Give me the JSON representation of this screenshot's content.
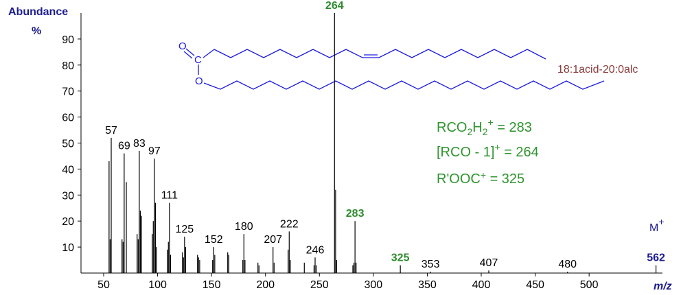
{
  "chart_data": {
    "type": "bar",
    "y_label": "Abundance",
    "y_unit": "%",
    "x_label": "m/z",
    "molecular_ion": [
      "M",
      "+"
    ],
    "compound": "18:1acid-20:0alc",
    "structure": {
      "atoms": [
        "O",
        "C",
        "O"
      ]
    },
    "formulas": [
      [
        "RCO",
        "2",
        "H",
        "2",
        "+",
        " = 283"
      ],
      [
        "[RCO - 1]",
        "+",
        " = 264"
      ],
      [
        "R'OOC",
        "+",
        " = 325"
      ]
    ],
    "x": [
      55,
      56,
      57,
      67,
      68,
      69,
      71,
      81,
      82,
      83,
      84,
      85,
      95,
      96,
      97,
      98,
      99,
      109,
      110,
      111,
      112,
      123,
      124,
      125,
      126,
      137,
      138,
      139,
      151,
      152,
      153,
      165,
      166,
      179,
      180,
      181,
      193,
      194,
      207,
      208,
      221,
      222,
      223,
      236,
      245,
      246,
      247,
      264,
      265,
      266,
      281,
      282,
      283,
      284,
      325,
      353,
      407,
      480,
      562
    ],
    "values": [
      43,
      13,
      52,
      13,
      12,
      46,
      35,
      15,
      13,
      47,
      24,
      22,
      15,
      20,
      44,
      27,
      10,
      9,
      12,
      27,
      7,
      8,
      6,
      14,
      10,
      7,
      6,
      5,
      5,
      10,
      7,
      8,
      7,
      5,
      15,
      5,
      4,
      3,
      10,
      4,
      9,
      16,
      5,
      4,
      3,
      6,
      3,
      100,
      32,
      5,
      3,
      4,
      20,
      4,
      3,
      0.5,
      1,
      0.5,
      3
    ],
    "label_colors": [
      null,
      null,
      "#000000",
      null,
      null,
      "#000000",
      null,
      null,
      null,
      "#000000",
      null,
      null,
      null,
      null,
      "#000000",
      null,
      null,
      null,
      null,
      "#000000",
      null,
      null,
      null,
      "#000000",
      null,
      null,
      null,
      null,
      null,
      "#000000",
      null,
      null,
      null,
      null,
      "#000000",
      null,
      null,
      null,
      "#000000",
      null,
      null,
      "#000000",
      null,
      null,
      null,
      "#000000",
      null,
      "#2e8b2e",
      null,
      null,
      null,
      null,
      "#2e8b2e",
      null,
      "#2e8b2e",
      "#000000",
      "#000000",
      "#000000",
      "#1c1c8c"
    ],
    "color": "#000000",
    "xlim": [
      29,
      568
    ],
    "ylim": [
      0,
      100
    ],
    "xticks": [
      50,
      100,
      150,
      200,
      250,
      300,
      350,
      400,
      450,
      500
    ],
    "yticks": [
      10,
      20,
      30,
      40,
      50,
      60,
      70,
      80,
      90
    ]
  }
}
